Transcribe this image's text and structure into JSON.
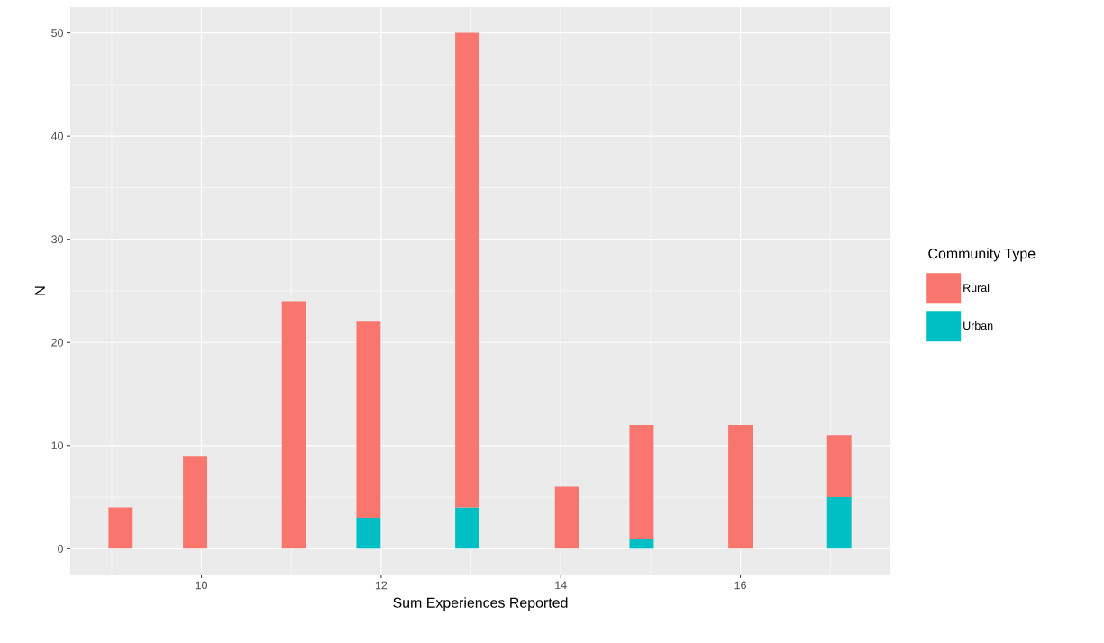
{
  "chart_data": {
    "type": "bar",
    "stacked": true,
    "xlabel": "Sum Experiences Reported",
    "ylabel": "N",
    "legend_title": "Community Type",
    "x": [
      9.1,
      9.93,
      11.03,
      11.86,
      12.96,
      14.07,
      14.9,
      16.0,
      17.1
    ],
    "series": [
      {
        "name": "Urban",
        "color": "#00bfc4",
        "values": [
          null,
          null,
          null,
          3,
          4,
          null,
          1,
          null,
          5
        ]
      },
      {
        "name": "Rural",
        "color": "#f8766d",
        "values": [
          4,
          9,
          24,
          19,
          46,
          6,
          11,
          12,
          6
        ]
      }
    ],
    "xlim": [
      8.54,
      17.67
    ],
    "ylim": [
      -2.5,
      52.5
    ],
    "xticks": [
      10,
      12,
      14,
      16
    ],
    "yticks": [
      0,
      10,
      20,
      30,
      40,
      50
    ],
    "grid": true,
    "legend": "right"
  }
}
